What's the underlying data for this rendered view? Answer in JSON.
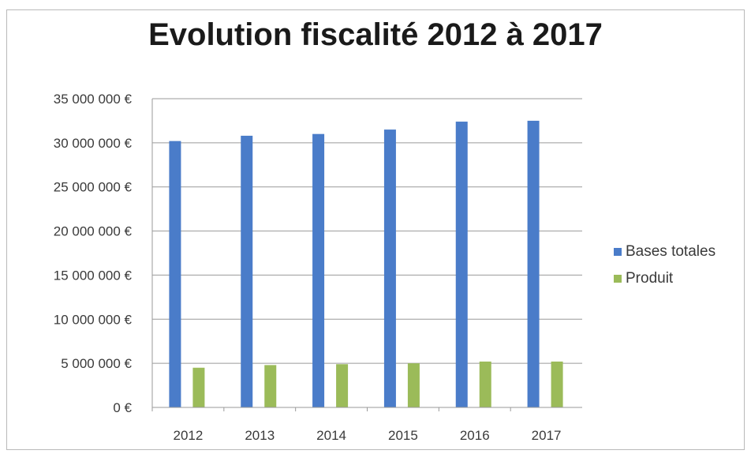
{
  "chart_data": {
    "type": "bar",
    "title": "Evolution fiscalité 2012 à 2017",
    "categories": [
      "2012",
      "2013",
      "2014",
      "2015",
      "2016",
      "2017"
    ],
    "series": [
      {
        "name": "Bases totales",
        "color": "#4a7cc9",
        "values": [
          30200000,
          30800000,
          31000000,
          31500000,
          32400000,
          32500000
        ]
      },
      {
        "name": "Produit",
        "color": "#9bbb59",
        "values": [
          4500000,
          4800000,
          4900000,
          5000000,
          5200000,
          5200000
        ]
      }
    ],
    "ylim": [
      0,
      35000000
    ],
    "yticks": [
      0,
      5000000,
      10000000,
      15000000,
      20000000,
      25000000,
      30000000,
      35000000
    ],
    "ytick_labels": [
      "0 €",
      "5 000 000 €",
      "10 000 000 €",
      "15 000 000 €",
      "20 000 000 €",
      "25 000 000 €",
      "30 000 000 €",
      "35 000 000 €"
    ],
    "grid": true,
    "legend_position": "right"
  }
}
